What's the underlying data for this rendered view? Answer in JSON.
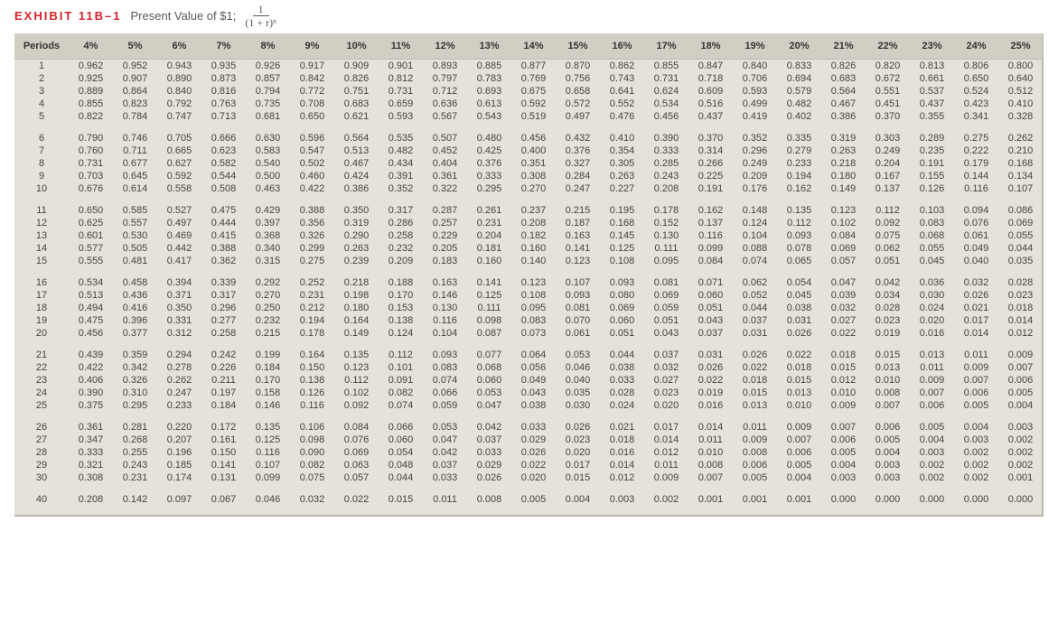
{
  "header": {
    "label": "EXHIBIT 11B–1",
    "title": "Present Value of $1;",
    "formula_num": "1",
    "formula_den": "(1 + r)ⁿ"
  },
  "table": {
    "periods_label": "Periods",
    "rates": [
      "4%",
      "5%",
      "6%",
      "7%",
      "8%",
      "9%",
      "10%",
      "11%",
      "12%",
      "13%",
      "14%",
      "15%",
      "16%",
      "17%",
      "18%",
      "19%",
      "20%",
      "21%",
      "22%",
      "23%",
      "24%",
      "25%"
    ],
    "groups": [
      {
        "periods": [
          "1",
          "2",
          "3",
          "4",
          "5"
        ],
        "rows": [
          [
            "0.962",
            "0.952",
            "0.943",
            "0.935",
            "0.926",
            "0.917",
            "0.909",
            "0.901",
            "0.893",
            "0.885",
            "0.877",
            "0.870",
            "0.862",
            "0.855",
            "0.847",
            "0.840",
            "0.833",
            "0.826",
            "0.820",
            "0.813",
            "0.806",
            "0.800"
          ],
          [
            "0.925",
            "0.907",
            "0.890",
            "0.873",
            "0.857",
            "0.842",
            "0.826",
            "0.812",
            "0.797",
            "0.783",
            "0.769",
            "0.756",
            "0.743",
            "0.731",
            "0.718",
            "0.706",
            "0.694",
            "0.683",
            "0.672",
            "0.661",
            "0.650",
            "0.640"
          ],
          [
            "0.889",
            "0.864",
            "0.840",
            "0.816",
            "0.794",
            "0.772",
            "0.751",
            "0.731",
            "0.712",
            "0.693",
            "0.675",
            "0.658",
            "0.641",
            "0.624",
            "0.609",
            "0.593",
            "0.579",
            "0.564",
            "0.551",
            "0.537",
            "0.524",
            "0.512"
          ],
          [
            "0.855",
            "0.823",
            "0.792",
            "0.763",
            "0.735",
            "0.708",
            "0.683",
            "0.659",
            "0.636",
            "0.613",
            "0.592",
            "0.572",
            "0.552",
            "0.534",
            "0.516",
            "0.499",
            "0.482",
            "0.467",
            "0.451",
            "0.437",
            "0.423",
            "0.410"
          ],
          [
            "0.822",
            "0.784",
            "0.747",
            "0.713",
            "0.681",
            "0.650",
            "0.621",
            "0.593",
            "0.567",
            "0.543",
            "0.519",
            "0.497",
            "0.476",
            "0.456",
            "0.437",
            "0.419",
            "0.402",
            "0.386",
            "0.370",
            "0.355",
            "0.341",
            "0.328"
          ]
        ]
      },
      {
        "periods": [
          "6",
          "7",
          "8",
          "9",
          "10"
        ],
        "rows": [
          [
            "0.790",
            "0.746",
            "0.705",
            "0.666",
            "0.630",
            "0.596",
            "0.564",
            "0.535",
            "0.507",
            "0.480",
            "0.456",
            "0.432",
            "0.410",
            "0.390",
            "0.370",
            "0.352",
            "0.335",
            "0.319",
            "0.303",
            "0.289",
            "0.275",
            "0.262"
          ],
          [
            "0.760",
            "0.711",
            "0.665",
            "0.623",
            "0.583",
            "0.547",
            "0.513",
            "0.482",
            "0.452",
            "0.425",
            "0.400",
            "0.376",
            "0.354",
            "0.333",
            "0.314",
            "0.296",
            "0.279",
            "0.263",
            "0.249",
            "0.235",
            "0.222",
            "0.210"
          ],
          [
            "0.731",
            "0.677",
            "0.627",
            "0.582",
            "0.540",
            "0.502",
            "0.467",
            "0.434",
            "0.404",
            "0.376",
            "0.351",
            "0.327",
            "0.305",
            "0.285",
            "0.266",
            "0.249",
            "0.233",
            "0.218",
            "0.204",
            "0.191",
            "0.179",
            "0.168"
          ],
          [
            "0.703",
            "0.645",
            "0.592",
            "0.544",
            "0.500",
            "0.460",
            "0.424",
            "0.391",
            "0.361",
            "0.333",
            "0.308",
            "0.284",
            "0.263",
            "0.243",
            "0.225",
            "0.209",
            "0.194",
            "0.180",
            "0.167",
            "0.155",
            "0.144",
            "0.134"
          ],
          [
            "0.676",
            "0.614",
            "0.558",
            "0.508",
            "0.463",
            "0.422",
            "0.386",
            "0.352",
            "0.322",
            "0.295",
            "0.270",
            "0.247",
            "0.227",
            "0.208",
            "0.191",
            "0.176",
            "0.162",
            "0.149",
            "0.137",
            "0.126",
            "0.116",
            "0.107"
          ]
        ]
      },
      {
        "periods": [
          "11",
          "12",
          "13",
          "14",
          "15"
        ],
        "rows": [
          [
            "0.650",
            "0.585",
            "0.527",
            "0.475",
            "0.429",
            "0.388",
            "0.350",
            "0.317",
            "0.287",
            "0.261",
            "0.237",
            "0.215",
            "0.195",
            "0.178",
            "0.162",
            "0.148",
            "0.135",
            "0.123",
            "0.112",
            "0.103",
            "0.094",
            "0.086"
          ],
          [
            "0.625",
            "0.557",
            "0.497",
            "0.444",
            "0.397",
            "0.356",
            "0.319",
            "0.286",
            "0.257",
            "0.231",
            "0.208",
            "0.187",
            "0.168",
            "0.152",
            "0.137",
            "0.124",
            "0.112",
            "0.102",
            "0.092",
            "0.083",
            "0.076",
            "0.069"
          ],
          [
            "0.601",
            "0.530",
            "0.469",
            "0.415",
            "0.368",
            "0.326",
            "0.290",
            "0.258",
            "0.229",
            "0.204",
            "0.182",
            "0.163",
            "0.145",
            "0.130",
            "0.116",
            "0.104",
            "0.093",
            "0.084",
            "0.075",
            "0.068",
            "0.061",
            "0.055"
          ],
          [
            "0.577",
            "0.505",
            "0.442",
            "0.388",
            "0.340",
            "0.299",
            "0.263",
            "0.232",
            "0.205",
            "0.181",
            "0.160",
            "0.141",
            "0.125",
            "0.111",
            "0.099",
            "0.088",
            "0.078",
            "0.069",
            "0.062",
            "0.055",
            "0.049",
            "0.044"
          ],
          [
            "0.555",
            "0.481",
            "0.417",
            "0.362",
            "0.315",
            "0.275",
            "0.239",
            "0.209",
            "0.183",
            "0.160",
            "0.140",
            "0.123",
            "0.108",
            "0.095",
            "0.084",
            "0.074",
            "0.065",
            "0.057",
            "0.051",
            "0.045",
            "0.040",
            "0.035"
          ]
        ]
      },
      {
        "periods": [
          "16",
          "17",
          "18",
          "19",
          "20"
        ],
        "rows": [
          [
            "0.534",
            "0.458",
            "0.394",
            "0.339",
            "0.292",
            "0.252",
            "0.218",
            "0.188",
            "0.163",
            "0.141",
            "0.123",
            "0.107",
            "0.093",
            "0.081",
            "0.071",
            "0.062",
            "0.054",
            "0.047",
            "0.042",
            "0.036",
            "0.032",
            "0.028"
          ],
          [
            "0.513",
            "0.436",
            "0.371",
            "0.317",
            "0.270",
            "0.231",
            "0.198",
            "0.170",
            "0.146",
            "0.125",
            "0.108",
            "0.093",
            "0.080",
            "0.069",
            "0.060",
            "0.052",
            "0.045",
            "0.039",
            "0.034",
            "0.030",
            "0.026",
            "0.023"
          ],
          [
            "0.494",
            "0.416",
            "0.350",
            "0.296",
            "0.250",
            "0.212",
            "0.180",
            "0.153",
            "0.130",
            "0.111",
            "0.095",
            "0.081",
            "0.069",
            "0.059",
            "0.051",
            "0.044",
            "0.038",
            "0.032",
            "0.028",
            "0.024",
            "0.021",
            "0.018"
          ],
          [
            "0.475",
            "0.396",
            "0.331",
            "0.277",
            "0.232",
            "0.194",
            "0.164",
            "0.138",
            "0.116",
            "0.098",
            "0.083",
            "0.070",
            "0.060",
            "0.051",
            "0.043",
            "0.037",
            "0.031",
            "0.027",
            "0.023",
            "0.020",
            "0.017",
            "0.014"
          ],
          [
            "0.456",
            "0.377",
            "0.312",
            "0.258",
            "0.215",
            "0.178",
            "0.149",
            "0.124",
            "0.104",
            "0.087",
            "0.073",
            "0.061",
            "0.051",
            "0.043",
            "0.037",
            "0.031",
            "0.026",
            "0.022",
            "0.019",
            "0.016",
            "0.014",
            "0.012"
          ]
        ]
      },
      {
        "periods": [
          "21",
          "22",
          "23",
          "24",
          "25"
        ],
        "rows": [
          [
            "0.439",
            "0.359",
            "0.294",
            "0.242",
            "0.199",
            "0.164",
            "0.135",
            "0.112",
            "0.093",
            "0.077",
            "0.064",
            "0.053",
            "0.044",
            "0.037",
            "0.031",
            "0.026",
            "0.022",
            "0.018",
            "0.015",
            "0.013",
            "0.011",
            "0.009"
          ],
          [
            "0.422",
            "0.342",
            "0.278",
            "0.226",
            "0.184",
            "0.150",
            "0.123",
            "0.101",
            "0.083",
            "0.068",
            "0.056",
            "0.046",
            "0.038",
            "0.032",
            "0.026",
            "0.022",
            "0.018",
            "0.015",
            "0.013",
            "0.011",
            "0.009",
            "0.007"
          ],
          [
            "0.406",
            "0.326",
            "0.262",
            "0.211",
            "0.170",
            "0.138",
            "0.112",
            "0.091",
            "0.074",
            "0.060",
            "0.049",
            "0.040",
            "0.033",
            "0.027",
            "0.022",
            "0.018",
            "0.015",
            "0.012",
            "0.010",
            "0.009",
            "0.007",
            "0.006"
          ],
          [
            "0.390",
            "0.310",
            "0.247",
            "0.197",
            "0.158",
            "0.126",
            "0.102",
            "0.082",
            "0.066",
            "0.053",
            "0.043",
            "0.035",
            "0.028",
            "0.023",
            "0.019",
            "0.015",
            "0.013",
            "0.010",
            "0.008",
            "0.007",
            "0.006",
            "0.005"
          ],
          [
            "0.375",
            "0.295",
            "0.233",
            "0.184",
            "0.146",
            "0.116",
            "0.092",
            "0.074",
            "0.059",
            "0.047",
            "0.038",
            "0.030",
            "0.024",
            "0.020",
            "0.016",
            "0.013",
            "0.010",
            "0.009",
            "0.007",
            "0.006",
            "0.005",
            "0.004"
          ]
        ]
      },
      {
        "periods": [
          "26",
          "27",
          "28",
          "29",
          "30"
        ],
        "rows": [
          [
            "0.361",
            "0.281",
            "0.220",
            "0.172",
            "0.135",
            "0.106",
            "0.084",
            "0.066",
            "0.053",
            "0.042",
            "0.033",
            "0.026",
            "0.021",
            "0.017",
            "0.014",
            "0.011",
            "0.009",
            "0.007",
            "0.006",
            "0.005",
            "0.004",
            "0.003"
          ],
          [
            "0.347",
            "0.268",
            "0.207",
            "0.161",
            "0.125",
            "0.098",
            "0.076",
            "0.060",
            "0.047",
            "0.037",
            "0.029",
            "0.023",
            "0.018",
            "0.014",
            "0.011",
            "0.009",
            "0.007",
            "0.006",
            "0.005",
            "0.004",
            "0.003",
            "0.002"
          ],
          [
            "0.333",
            "0.255",
            "0.196",
            "0.150",
            "0.116",
            "0.090",
            "0.069",
            "0.054",
            "0.042",
            "0.033",
            "0.026",
            "0.020",
            "0.016",
            "0.012",
            "0.010",
            "0.008",
            "0.006",
            "0.005",
            "0.004",
            "0.003",
            "0.002",
            "0.002"
          ],
          [
            "0.321",
            "0.243",
            "0.185",
            "0.141",
            "0.107",
            "0.082",
            "0.063",
            "0.048",
            "0.037",
            "0.029",
            "0.022",
            "0.017",
            "0.014",
            "0.011",
            "0.008",
            "0.006",
            "0.005",
            "0.004",
            "0.003",
            "0.002",
            "0.002",
            "0.002"
          ],
          [
            "0.308",
            "0.231",
            "0.174",
            "0.131",
            "0.099",
            "0.075",
            "0.057",
            "0.044",
            "0.033",
            "0.026",
            "0.020",
            "0.015",
            "0.012",
            "0.009",
            "0.007",
            "0.005",
            "0.004",
            "0.003",
            "0.003",
            "0.002",
            "0.002",
            "0.001"
          ]
        ]
      },
      {
        "periods": [
          "40"
        ],
        "rows": [
          [
            "0.208",
            "0.142",
            "0.097",
            "0.067",
            "0.046",
            "0.032",
            "0.022",
            "0.015",
            "0.011",
            "0.008",
            "0.005",
            "0.004",
            "0.003",
            "0.002",
            "0.001",
            "0.001",
            "0.001",
            "0.000",
            "0.000",
            "0.000",
            "0.000",
            "0.000"
          ]
        ]
      }
    ],
    "style": {
      "header_bg": "#d1cec4",
      "body_bg": "#e5e2d9",
      "label_color": "#d8222a",
      "text_color": "#444444"
    }
  }
}
